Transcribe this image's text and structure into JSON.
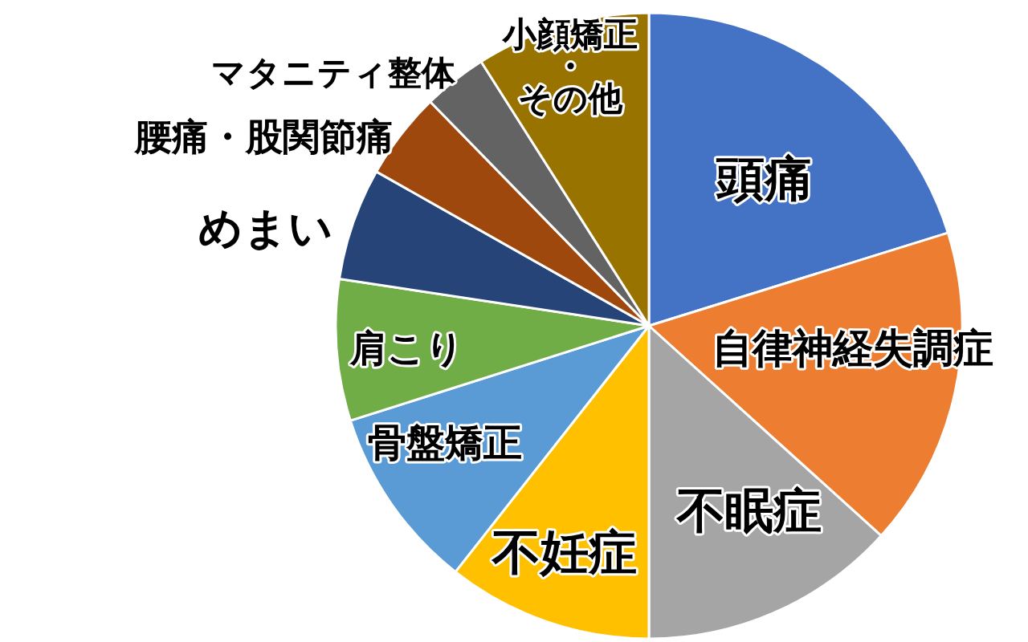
{
  "chart_data": {
    "type": "pie",
    "categories": [
      "頭痛",
      "自律神経失調症",
      "不眠症",
      "不妊症",
      "骨盤矯正",
      "肩こり",
      "めまい",
      "腰痛・股関節痛",
      "マタニティ整体",
      "小顔矯正・その他"
    ],
    "values": [
      20.2,
      16.5,
      13.3,
      10.6,
      9.5,
      7.3,
      5.8,
      4.5,
      3.3,
      9.0
    ],
    "colors": [
      "#4472c4",
      "#ed7d31",
      "#a5a5a5",
      "#ffc000",
      "#5b9bd5",
      "#70ad47",
      "#264478",
      "#9e480e",
      "#636363",
      "#997300"
    ]
  }
}
